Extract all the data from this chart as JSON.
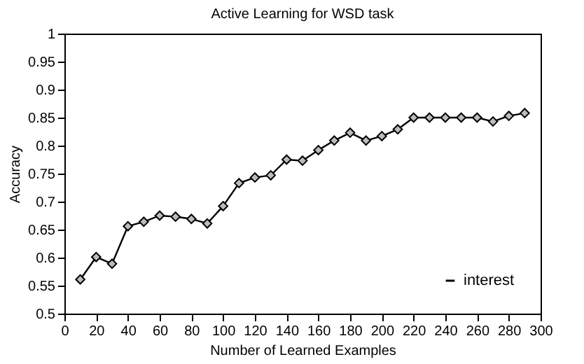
{
  "chart_data": {
    "type": "line",
    "title": "Active Learning for WSD task",
    "xlabel": "Number of Learned Examples",
    "ylabel": "Accuracy",
    "x": [
      10,
      20,
      30,
      40,
      50,
      60,
      70,
      80,
      90,
      100,
      110,
      120,
      130,
      140,
      150,
      160,
      170,
      180,
      190,
      200,
      210,
      220,
      230,
      240,
      250,
      260,
      270,
      280,
      290
    ],
    "series": [
      {
        "name": "interest",
        "color": "#000000",
        "values": [
          0.561,
          0.601,
          0.589,
          0.656,
          0.664,
          0.675,
          0.673,
          0.669,
          0.661,
          0.692,
          0.733,
          0.743,
          0.747,
          0.775,
          0.773,
          0.792,
          0.809,
          0.823,
          0.809,
          0.817,
          0.829,
          0.85,
          0.85,
          0.85,
          0.85,
          0.85,
          0.843,
          0.853,
          0.858
        ]
      }
    ],
    "xlim": [
      0,
      300
    ],
    "xticks": [
      0,
      20,
      40,
      60,
      80,
      100,
      120,
      140,
      160,
      180,
      200,
      220,
      240,
      260,
      280,
      300
    ],
    "ylim": [
      0.5,
      1
    ],
    "yticks": [
      0.5,
      0.55,
      0.6,
      0.65,
      0.7,
      0.75,
      0.8,
      0.85,
      0.9,
      0.95,
      1
    ],
    "grid": false,
    "legend": "bottom right",
    "marker": "diamond",
    "line_style": "solid"
  }
}
